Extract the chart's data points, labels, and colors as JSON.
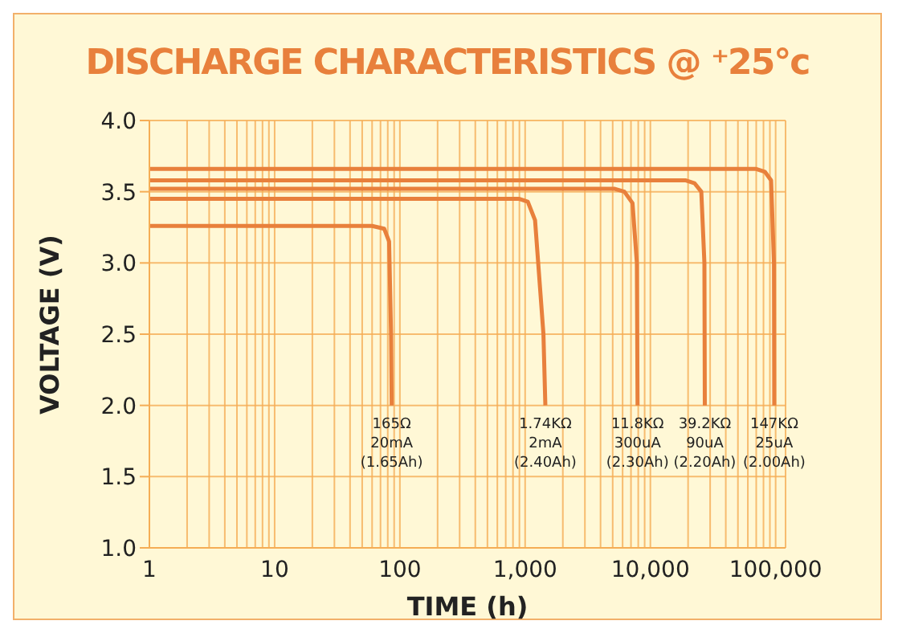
{
  "chart_data": {
    "type": "line",
    "title": "DISCHARGE CHARACTERISTICS @ ⁺25°c",
    "xlabel": "TIME (h)",
    "ylabel": "VOLTAGE (V)",
    "log": "x",
    "grid": true,
    "marker": "none",
    "line_style": "solid",
    "xlim": [
      1,
      120000
    ],
    "ylim": [
      1,
      4
    ],
    "xticks": [
      {
        "value": 1,
        "label": "1"
      },
      {
        "value": 2,
        "label": null
      },
      {
        "value": 3,
        "label": null
      },
      {
        "value": 4,
        "label": null
      },
      {
        "value": 5,
        "label": null
      },
      {
        "value": 6,
        "label": null
      },
      {
        "value": 7,
        "label": null
      },
      {
        "value": 8,
        "label": null
      },
      {
        "value": 9,
        "label": null
      },
      {
        "value": 10,
        "label": "10"
      },
      {
        "value": 20,
        "label": null
      },
      {
        "value": 30,
        "label": null
      },
      {
        "value": 40,
        "label": null
      },
      {
        "value": 50,
        "label": null
      },
      {
        "value": 60,
        "label": null
      },
      {
        "value": 70,
        "label": null
      },
      {
        "value": 80,
        "label": null
      },
      {
        "value": 90,
        "label": null
      },
      {
        "value": 100,
        "label": "100"
      },
      {
        "value": 200,
        "label": null
      },
      {
        "value": 300,
        "label": null
      },
      {
        "value": 400,
        "label": null
      },
      {
        "value": 500,
        "label": null
      },
      {
        "value": 600,
        "label": null
      },
      {
        "value": 700,
        "label": null
      },
      {
        "value": 800,
        "label": null
      },
      {
        "value": 900,
        "label": null
      },
      {
        "value": 1000,
        "label": "1,000"
      },
      {
        "value": 2000,
        "label": null
      },
      {
        "value": 3000,
        "label": null
      },
      {
        "value": 4000,
        "label": null
      },
      {
        "value": 5000,
        "label": null
      },
      {
        "value": 6000,
        "label": null
      },
      {
        "value": 7000,
        "label": null
      },
      {
        "value": 8000,
        "label": null
      },
      {
        "value": 9000,
        "label": null
      },
      {
        "value": 10000,
        "label": "10,000"
      },
      {
        "value": 20000,
        "label": null
      },
      {
        "value": 30000,
        "label": null
      },
      {
        "value": 40000,
        "label": null
      },
      {
        "value": 50000,
        "label": null
      },
      {
        "value": 60000,
        "label": null
      },
      {
        "value": 70000,
        "label": null
      },
      {
        "value": 80000,
        "label": null
      },
      {
        "value": 90000,
        "label": null
      },
      {
        "value": 100000,
        "label": "100,000"
      }
    ],
    "yticks": [
      {
        "value": 1,
        "label": "1.0"
      },
      {
        "value": 1.5,
        "label": "1.5"
      },
      {
        "value": 2,
        "label": "2.0"
      },
      {
        "value": 2.5,
        "label": "2.5"
      },
      {
        "value": 3,
        "label": "3.0"
      },
      {
        "value": 3.5,
        "label": "3.5"
      },
      {
        "value": 4,
        "label": "4.0"
      }
    ],
    "series": [
      {
        "color": "#e8803c",
        "x": [
          1,
          60,
          75,
          82,
          85,
          86
        ],
        "values": [
          3.26,
          3.26,
          3.24,
          3.15,
          2.5,
          2.0
        ]
      },
      {
        "color": "#e8803c",
        "x": [
          1,
          900,
          1050,
          1200,
          1400,
          1450
        ],
        "values": [
          3.45,
          3.45,
          3.43,
          3.3,
          2.5,
          2.0
        ]
      },
      {
        "color": "#e8803c",
        "x": [
          1,
          5200,
          6200,
          7200,
          7800,
          7900
        ],
        "values": [
          3.52,
          3.52,
          3.5,
          3.42,
          3.0,
          2.0
        ]
      },
      {
        "color": "#e8803c",
        "x": [
          1,
          19000,
          22500,
          25500,
          27000,
          27200
        ],
        "values": [
          3.58,
          3.58,
          3.56,
          3.5,
          3.0,
          2.0
        ]
      },
      {
        "color": "#e8803c",
        "x": [
          1,
          70000,
          82000,
          92000,
          97000,
          97500
        ],
        "values": [
          3.66,
          3.66,
          3.64,
          3.58,
          3.0,
          2.0
        ]
      }
    ],
    "annotations": [
      {
        "text": "165Ω\n20mA\n(1.65Ah)",
        "x": 86,
        "y": 2.0
      },
      {
        "text": "1.74KΩ\n2mA\n(2.40Ah)",
        "x": 1450,
        "y": 2.0
      },
      {
        "text": "11.8KΩ\n300uA\n(2.30Ah)",
        "x": 7900,
        "y": 2.0
      },
      {
        "text": "39.2KΩ\n90uA\n(2.20Ah)",
        "x": 27200,
        "y": 2.0
      },
      {
        "text": "147KΩ\n25uA\n(2.00Ah)",
        "x": 97500,
        "y": 2.0
      }
    ]
  }
}
